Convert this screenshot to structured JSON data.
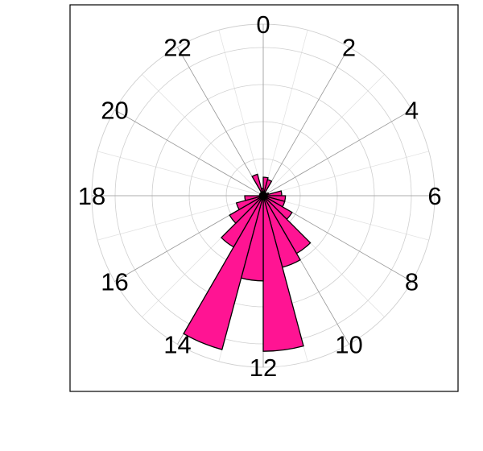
{
  "chart_data": {
    "type": "polar-bar",
    "direction": "clockwise",
    "zero_at": "top",
    "hour_labels": [
      "0",
      "2",
      "4",
      "6",
      "8",
      "10",
      "12",
      "14",
      "16",
      "18",
      "20",
      "22"
    ],
    "bin_width_hours": 1,
    "bins": [
      {
        "hour_start": 0,
        "value": 0.5
      },
      {
        "hour_start": 1,
        "value": 0.45
      },
      {
        "hour_start": 2,
        "value": 0.1
      },
      {
        "hour_start": 3,
        "value": 0.1
      },
      {
        "hour_start": 4,
        "value": 0.15
      },
      {
        "hour_start": 5,
        "value": 0.5
      },
      {
        "hour_start": 6,
        "value": 0.6
      },
      {
        "hour_start": 7,
        "value": 0.6
      },
      {
        "hour_start": 8,
        "value": 0.9
      },
      {
        "hour_start": 9,
        "value": 1.8
      },
      {
        "hour_start": 10,
        "value": 2.0
      },
      {
        "hour_start": 11,
        "value": 4.2
      },
      {
        "hour_start": 12,
        "value": 2.3
      },
      {
        "hour_start": 13,
        "value": 4.3
      },
      {
        "hour_start": 14,
        "value": 1.6
      },
      {
        "hour_start": 15,
        "value": 1.05
      },
      {
        "hour_start": 16,
        "value": 0.75
      },
      {
        "hour_start": 17,
        "value": 0.5
      },
      {
        "hour_start": 18,
        "value": 0.1
      },
      {
        "hour_start": 19,
        "value": 0.1
      },
      {
        "hour_start": 20,
        "value": 0.1
      },
      {
        "hour_start": 21,
        "value": 0.1
      },
      {
        "hour_start": 22,
        "value": 0.6
      },
      {
        "hour_start": 23,
        "value": 0.2
      }
    ],
    "radial_rings": [
      1,
      2,
      3,
      4
    ],
    "r_max": 4.3,
    "bar_color": "#ff1493",
    "bar_edge_color": "#000000",
    "ring_color": "#cfcfcf",
    "spoke_color": "#9a9a9a",
    "frame_color": "#000000"
  }
}
